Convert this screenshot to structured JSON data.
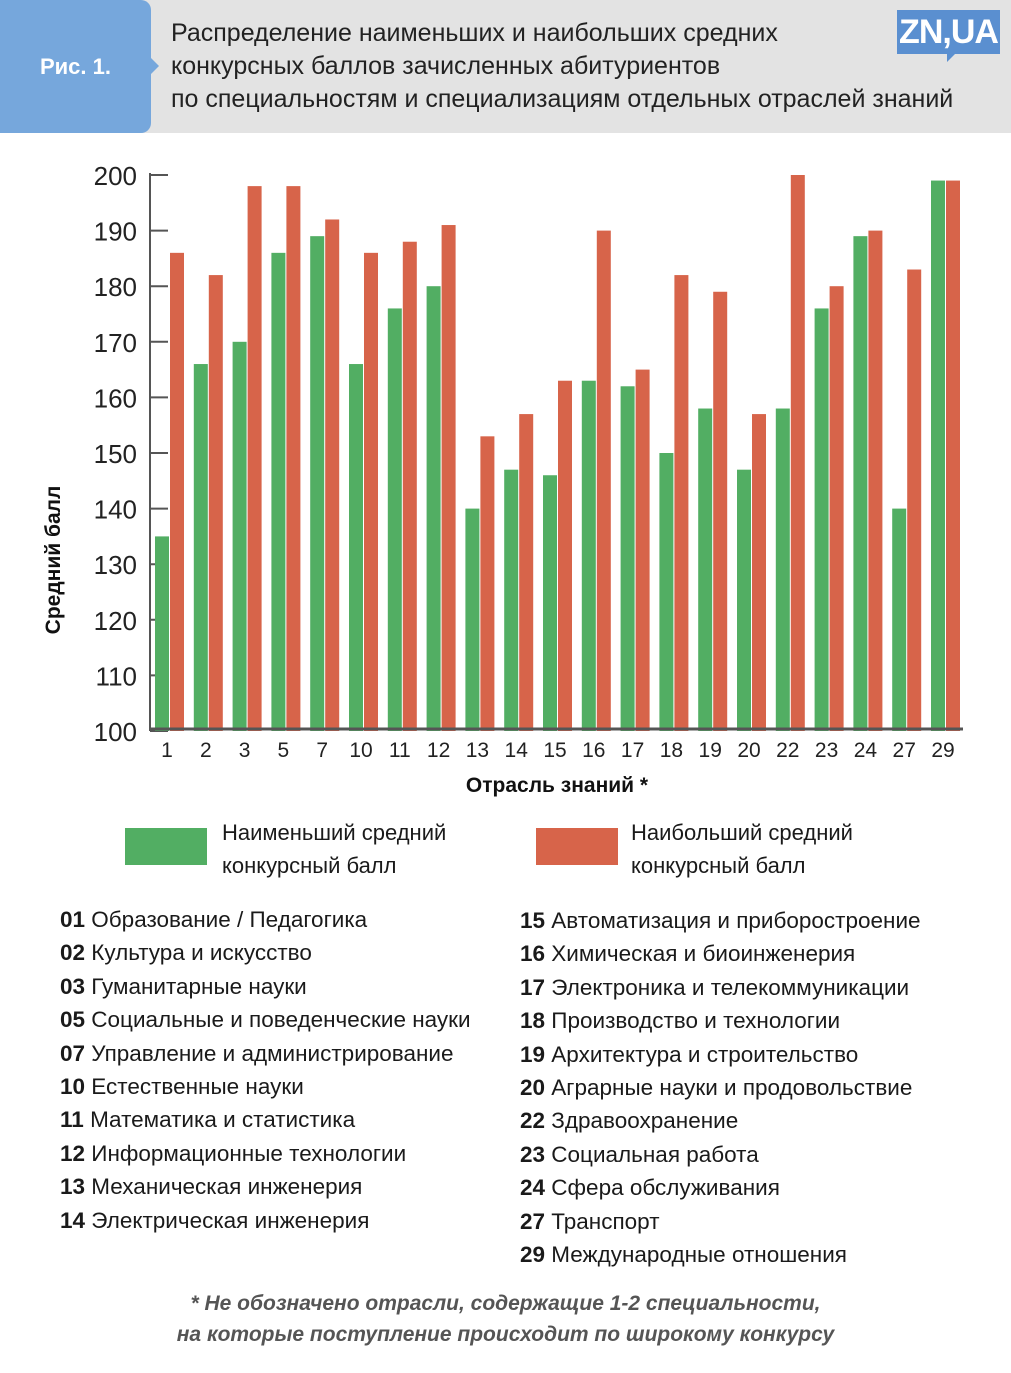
{
  "header": {
    "fig_label": "Рис. 1.",
    "title_lines": [
      "Распределение наименьших и наибольших средних",
      "конкурсных баллов зачисленных абитуриентов",
      "по специальностям и специализациям отдельных отраслей знаний"
    ],
    "logo": "ZN,UA"
  },
  "chart_data": {
    "type": "bar",
    "xlabel": "Отрасль знаний *",
    "ylabel": "Средний балл",
    "ylim": [
      100,
      200
    ],
    "yticks": [
      100,
      110,
      120,
      130,
      140,
      150,
      160,
      170,
      180,
      190,
      200
    ],
    "categories": [
      "1",
      "2",
      "3",
      "5",
      "7",
      "10",
      "11",
      "12",
      "13",
      "14",
      "15",
      "16",
      "17",
      "18",
      "19",
      "20",
      "22",
      "23",
      "24",
      "27",
      "29"
    ],
    "series": [
      {
        "name": "Наименьший средний конкурсный балл",
        "color": "#52ae63",
        "values": [
          135,
          166,
          170,
          186,
          189,
          166,
          176,
          180,
          140,
          147,
          146,
          163,
          162,
          150,
          158,
          147,
          158,
          176,
          189,
          140,
          199
        ]
      },
      {
        "name": "Наибольший средний конкурсный балл",
        "color": "#d7644a",
        "values": [
          186,
          182,
          198,
          198,
          192,
          186,
          188,
          191,
          153,
          157,
          163,
          190,
          165,
          182,
          179,
          157,
          200,
          180,
          190,
          183,
          199
        ]
      }
    ]
  },
  "legend": {
    "min_lines": [
      "Наименьший средний",
      "конкурсный балл"
    ],
    "max_lines": [
      "Наибольший средний",
      "конкурсный балл"
    ]
  },
  "codes_left": [
    [
      "01",
      "Образование / Педагогика"
    ],
    [
      "02",
      "Культура и искусство"
    ],
    [
      "03",
      "Гуманитарные науки"
    ],
    [
      "05",
      "Социальные и поведенческие науки"
    ],
    [
      "07",
      "Управление и администрирование"
    ],
    [
      "10",
      "Естественные науки"
    ],
    [
      "11",
      "Математика и статистика"
    ],
    [
      "12",
      "Информационные технологии"
    ],
    [
      "13",
      "Механическая инженерия"
    ],
    [
      "14",
      "Электрическая инженерия"
    ]
  ],
  "codes_right": [
    [
      "15",
      "Автоматизация и приборостроение"
    ],
    [
      "16",
      "Химическая и биоинженерия"
    ],
    [
      "17",
      "Электроника и телекоммуникации"
    ],
    [
      "18",
      "Производство и технологии"
    ],
    [
      "19",
      "Архитектура и строительство"
    ],
    [
      "20",
      "Аграрные науки и продовольствие"
    ],
    [
      "22",
      "Здравоохранение"
    ],
    [
      "23",
      "Социальная работа"
    ],
    [
      "24",
      "Сфера обслуживания"
    ],
    [
      "27",
      "Транспорт"
    ],
    [
      "29",
      "Международные отношения"
    ]
  ],
  "note_lines": [
    "* Не обозначено отрасли, содержащие 1-2 специальности,",
    "на которые поступление происходит по широкому конкурсу"
  ]
}
